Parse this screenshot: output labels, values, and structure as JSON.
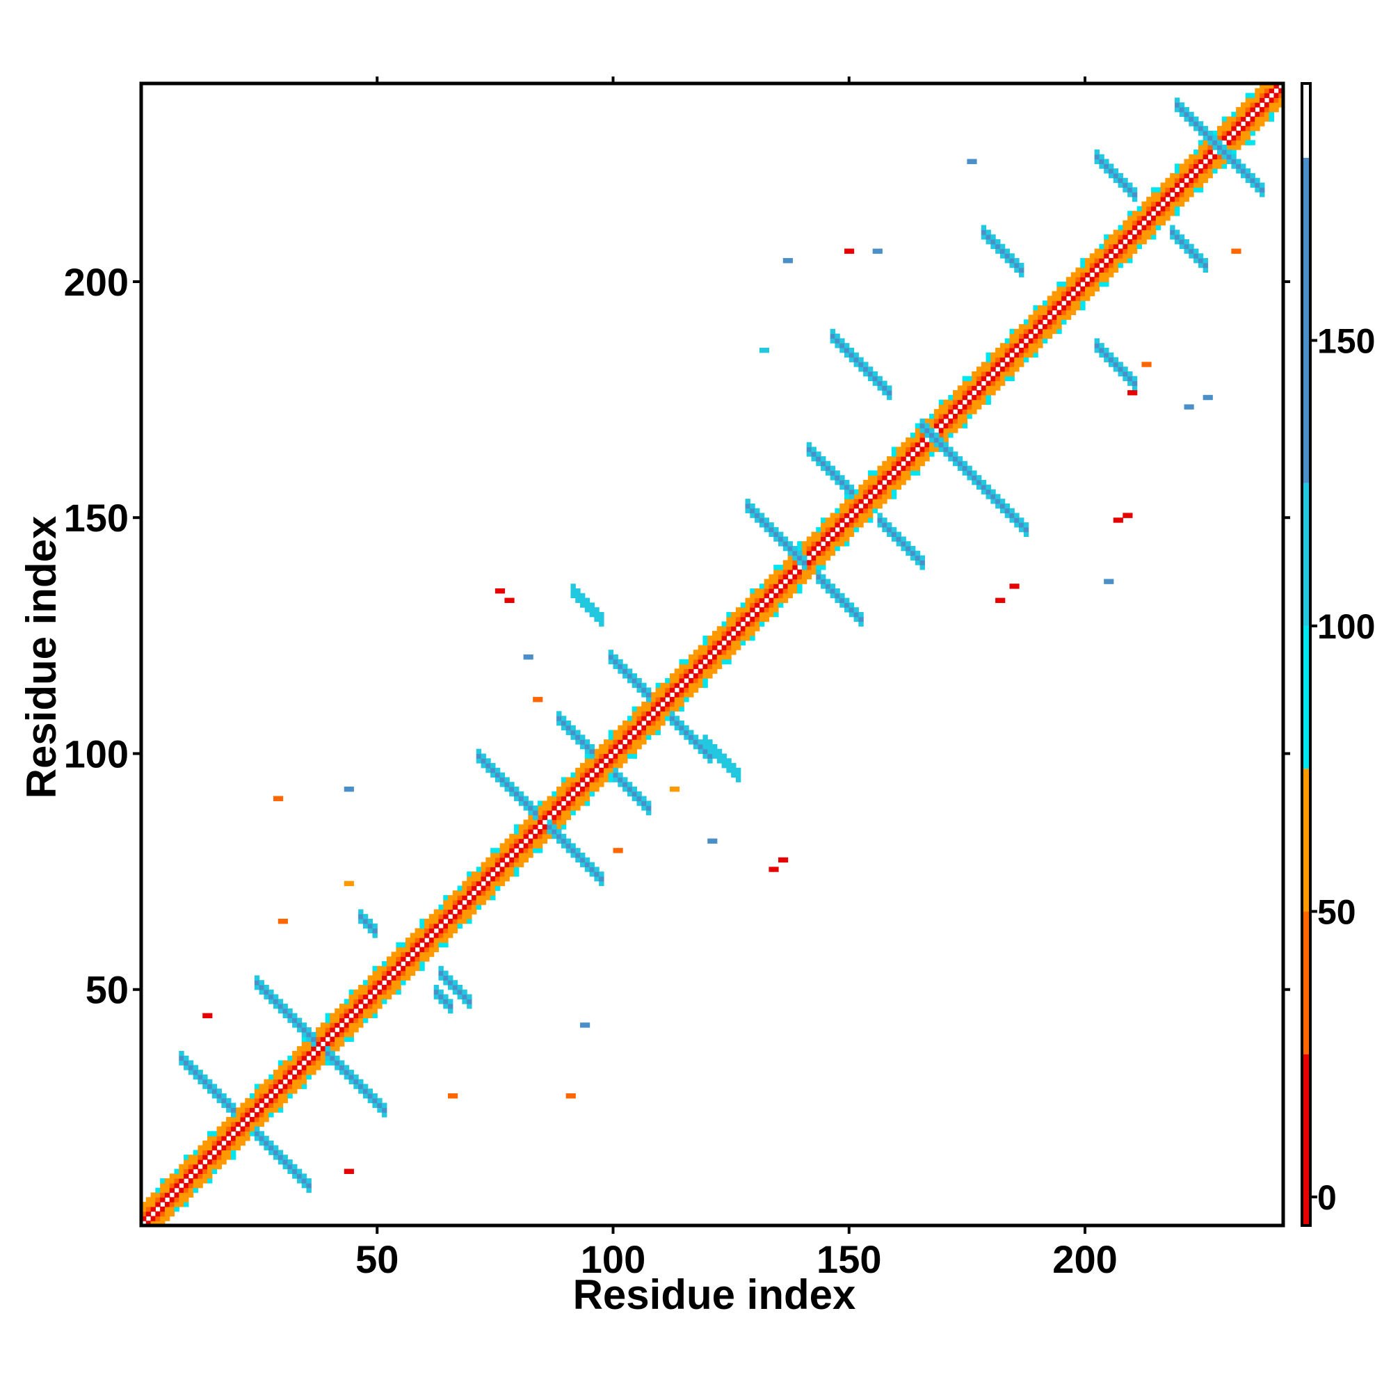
{
  "chart_data": {
    "type": "heatmap",
    "title": "",
    "xlabel": "Residue index",
    "ylabel": "Residue index",
    "xlim": [
      0,
      242
    ],
    "ylim": [
      0,
      242
    ],
    "x_ticks": [
      50,
      100,
      150,
      200
    ],
    "y_ticks": [
      50,
      100,
      150,
      200
    ],
    "grid": false,
    "colorbar": {
      "position": "right",
      "ticks": [
        0,
        50,
        100,
        150
      ],
      "range": [
        -5,
        195
      ],
      "stops": [
        {
          "from": -5,
          "to": 25,
          "color": "#e60000"
        },
        {
          "from": 25,
          "to": 50,
          "color": "#ff6600"
        },
        {
          "from": 50,
          "to": 75,
          "color": "#ff9900"
        },
        {
          "from": 75,
          "to": 100,
          "color": "#00e5ee"
        },
        {
          "from": 100,
          "to": 125,
          "color": "#22c8e0"
        },
        {
          "from": 125,
          "to": 182,
          "color": "#4a8fc8"
        },
        {
          "from": 182,
          "to": 195,
          "color": "#ffffff"
        }
      ]
    },
    "diagonal": {
      "from": 1,
      "to": 242
    },
    "antiparallel_bands": [
      {
        "c": 45,
        "i_from": 9,
        "i_to": 20,
        "value": 140
      },
      {
        "c": 45,
        "i_from": 25,
        "i_to": 36,
        "value": 140
      },
      {
        "c": 77,
        "i_from": 25,
        "i_to": 37,
        "value": 140
      },
      {
        "c": 77,
        "i_from": 40,
        "i_to": 52,
        "value": 140
      },
      {
        "c": 113,
        "i_from": 47,
        "i_to": 50,
        "value": 140
      },
      {
        "c": 113,
        "i_from": 63,
        "i_to": 66,
        "value": 140
      },
      {
        "c": 118,
        "i_from": 64,
        "i_to": 70,
        "value": 140
      },
      {
        "c": 172,
        "i_from": 72,
        "i_to": 84,
        "value": 140
      },
      {
        "c": 172,
        "i_from": 87,
        "i_to": 98,
        "value": 140
      },
      {
        "c": 197,
        "i_from": 89,
        "i_to": 96,
        "value": 140
      },
      {
        "c": 197,
        "i_from": 101,
        "i_to": 108,
        "value": 140
      },
      {
        "c": 221,
        "i_from": 100,
        "i_to": 108,
        "value": 140
      },
      {
        "c": 221,
        "i_from": 113,
        "i_to": 121,
        "value": 140
      },
      {
        "c": 227,
        "i_from": 92,
        "i_to": 98,
        "value": 110
      },
      {
        "c": 223,
        "i_from": 120,
        "i_to": 127,
        "value": 110
      },
      {
        "c": 282,
        "i_from": 129,
        "i_to": 141,
        "value": 140
      },
      {
        "c": 282,
        "i_from": 144,
        "i_to": 153,
        "value": 140
      },
      {
        "c": 307,
        "i_from": 142,
        "i_to": 151,
        "value": 140
      },
      {
        "c": 307,
        "i_from": 157,
        "i_to": 166,
        "value": 140
      },
      {
        "c": 336,
        "i_from": 147,
        "i_to": 159,
        "value": 140
      },
      {
        "c": 336,
        "i_from": 166,
        "i_to": 188,
        "value": 140
      },
      {
        "c": 390,
        "i_from": 179,
        "i_to": 187,
        "value": 140
      },
      {
        "c": 390,
        "i_from": 203,
        "i_to": 211,
        "value": 140
      },
      {
        "c": 430,
        "i_from": 203,
        "i_to": 211,
        "value": 140
      },
      {
        "c": 430,
        "i_from": 219,
        "i_to": 226,
        "value": 140
      },
      {
        "c": 458,
        "i_from": 220,
        "i_to": 229,
        "value": 140
      },
      {
        "c": 458,
        "i_from": 229,
        "i_to": 238,
        "value": 140
      }
    ],
    "isolated_contacts": [
      {
        "i": 14,
        "j": 45,
        "value": 20
      },
      {
        "i": 29,
        "j": 91,
        "value": 40
      },
      {
        "i": 30,
        "j": 65,
        "value": 40
      },
      {
        "i": 44,
        "j": 93,
        "value": 140
      },
      {
        "i": 44,
        "j": 12,
        "value": 20
      },
      {
        "i": 44,
        "j": 73,
        "value": 50
      },
      {
        "i": 66,
        "j": 28,
        "value": 40
      },
      {
        "i": 76,
        "j": 135,
        "value": 15
      },
      {
        "i": 78,
        "j": 133,
        "value": 15
      },
      {
        "i": 82,
        "j": 121,
        "value": 140
      },
      {
        "i": 84,
        "j": 112,
        "value": 40
      },
      {
        "i": 91,
        "j": 28,
        "value": 40
      },
      {
        "i": 94,
        "j": 43,
        "value": 140
      },
      {
        "i": 101,
        "j": 80,
        "value": 40
      },
      {
        "i": 113,
        "j": 93,
        "value": 50
      },
      {
        "i": 121,
        "j": 82,
        "value": 140
      },
      {
        "i": 132,
        "j": 186,
        "value": 110
      },
      {
        "i": 134,
        "j": 76,
        "value": 15
      },
      {
        "i": 136,
        "j": 78,
        "value": 15
      },
      {
        "i": 137,
        "j": 205,
        "value": 140
      },
      {
        "i": 150,
        "j": 207,
        "value": 20
      },
      {
        "i": 156,
        "j": 207,
        "value": 140
      },
      {
        "i": 176,
        "j": 226,
        "value": 140
      },
      {
        "i": 182,
        "j": 133,
        "value": 15
      },
      {
        "i": 185,
        "j": 136,
        "value": 15
      },
      {
        "i": 205,
        "j": 137,
        "value": 140
      },
      {
        "i": 207,
        "j": 150,
        "value": 20
      },
      {
        "i": 209,
        "j": 151,
        "value": 20
      },
      {
        "i": 210,
        "j": 177,
        "value": 20
      },
      {
        "i": 213,
        "j": 183,
        "value": 40
      },
      {
        "i": 222,
        "j": 174,
        "value": 140
      },
      {
        "i": 226,
        "j": 176,
        "value": 140
      },
      {
        "i": 232,
        "j": 207,
        "value": 40
      },
      {
        "i": 235,
        "j": 230,
        "value": 90
      }
    ]
  }
}
